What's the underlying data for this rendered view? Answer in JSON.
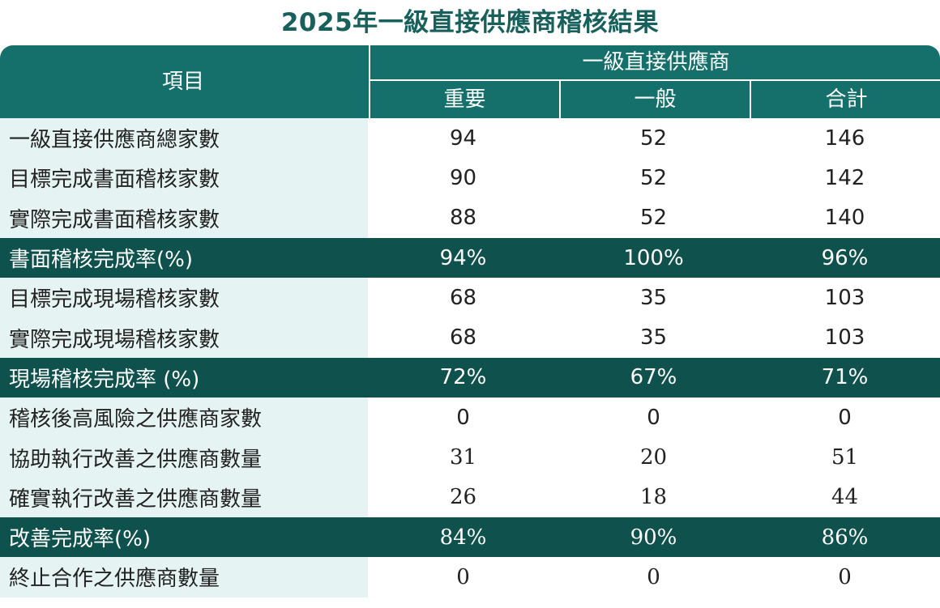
{
  "title": "2025年一級直接供應商稽核結果",
  "header": {
    "item_label": "項目",
    "group_label": "一級直接供應商",
    "columns": [
      "重要",
      "一般",
      "合計"
    ]
  },
  "rows": [
    {
      "label": "一級直接供應商總家數",
      "values": [
        "94",
        "52",
        "146"
      ],
      "highlight": false
    },
    {
      "label": "目標完成書面稽核家數",
      "values": [
        "90",
        "52",
        "142"
      ],
      "highlight": false
    },
    {
      "label": "實際完成書面稽核家數",
      "values": [
        "88",
        "52",
        "140"
      ],
      "highlight": false
    },
    {
      "label": "書面稽核完成率(%)",
      "values": [
        "94%",
        "100%",
        "96%"
      ],
      "highlight": true
    },
    {
      "label": "目標完成現場稽核家數",
      "values": [
        "68",
        "35",
        "103"
      ],
      "highlight": false
    },
    {
      "label": "實際完成現場稽核家數",
      "values": [
        "68",
        "35",
        "103"
      ],
      "highlight": false
    },
    {
      "label": "現場稽核完成率 (%)",
      "values": [
        "72%",
        "67%",
        "71%"
      ],
      "highlight": true
    },
    {
      "label": "稽核後高風險之供應商家數",
      "values": [
        "0",
        "0",
        "0"
      ],
      "highlight": false
    },
    {
      "label": "協助執行改善之供應商數量",
      "values": [
        "31",
        "20",
        "51"
      ],
      "highlight": false
    },
    {
      "label": "確實執行改善之供應商數量",
      "values": [
        "26",
        "18",
        "44"
      ],
      "highlight": false
    },
    {
      "label": "改善完成率(%)",
      "values": [
        "84%",
        "90%",
        "86%"
      ],
      "highlight": true
    },
    {
      "label": "終止合作之供應商數量",
      "values": [
        "0",
        "0",
        "0"
      ],
      "highlight": false
    }
  ],
  "colors": {
    "title": "#17605c",
    "header_bg": "#15706b",
    "highlight_bg": "#0f524d",
    "label_bg": "#e5f3f3"
  }
}
